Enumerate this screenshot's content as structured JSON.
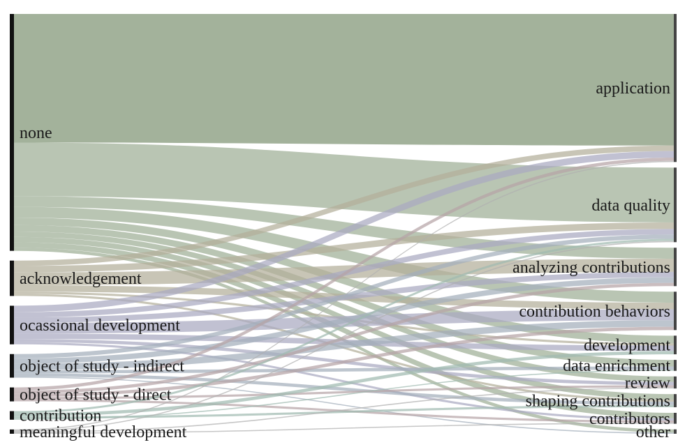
{
  "chart_data": {
    "type": "sankey",
    "title": "",
    "sources": [
      "none",
      "acknowledgement",
      "ocassional development",
      "object of study - indirect",
      "object of study - direct",
      "contribution",
      "meaningful development"
    ],
    "targets": [
      "application",
      "data quality",
      "analyzing contributions",
      "contribution behaviors",
      "development",
      "data enrichment",
      "review",
      "shaping contributions",
      "contributors",
      "other"
    ],
    "source_colors": [
      "#9eae96",
      "#b3ae9a",
      "#a9a9c0",
      "#a3aebb",
      "#b6a3a6",
      "#9fbab0",
      "#b0b0b0"
    ],
    "flows": [
      {
        "source": "none",
        "target": "application",
        "value": 12
      },
      {
        "source": "none",
        "target": "data quality",
        "value": 5
      },
      {
        "source": "none",
        "target": "analyzing contributions",
        "value": 1
      },
      {
        "source": "none",
        "target": "contribution behaviors",
        "value": 1
      },
      {
        "source": "none",
        "target": "development",
        "value": 0.7
      },
      {
        "source": "none",
        "target": "data enrichment",
        "value": 0.6
      },
      {
        "source": "none",
        "target": "review",
        "value": 0.5
      },
      {
        "source": "none",
        "target": "shaping contributions",
        "value": 0.5
      },
      {
        "source": "none",
        "target": "contributors",
        "value": 0.5
      },
      {
        "source": "none",
        "target": "other",
        "value": 0.3
      },
      {
        "source": "acknowledgement",
        "target": "application",
        "value": 0.5
      },
      {
        "source": "acknowledgement",
        "target": "data quality",
        "value": 0.6
      },
      {
        "source": "acknowledgement",
        "target": "analyzing contributions",
        "value": 1.2
      },
      {
        "source": "acknowledgement",
        "target": "contribution behaviors",
        "value": 0.6
      },
      {
        "source": "acknowledgement",
        "target": "development",
        "value": 0.2
      },
      {
        "source": "acknowledgement",
        "target": "shaping contributions",
        "value": 0.2
      },
      {
        "source": "ocassional development",
        "target": "application",
        "value": 0.6
      },
      {
        "source": "ocassional development",
        "target": "data quality",
        "value": 0.5
      },
      {
        "source": "ocassional development",
        "target": "analyzing contributions",
        "value": 0.5
      },
      {
        "source": "ocassional development",
        "target": "contribution behaviors",
        "value": 1.0
      },
      {
        "source": "ocassional development",
        "target": "development",
        "value": 0.5
      },
      {
        "source": "ocassional development",
        "target": "review",
        "value": 0.3
      },
      {
        "source": "ocassional development",
        "target": "contributors",
        "value": 0.2
      },
      {
        "source": "object of study - indirect",
        "target": "data quality",
        "value": 0.4
      },
      {
        "source": "object of study - indirect",
        "target": "analyzing contributions",
        "value": 0.5
      },
      {
        "source": "object of study - indirect",
        "target": "contribution behaviors",
        "value": 0.6
      },
      {
        "source": "object of study - indirect",
        "target": "data enrichment",
        "value": 0.3
      },
      {
        "source": "object of study - indirect",
        "target": "shaping contributions",
        "value": 0.3
      },
      {
        "source": "object of study - indirect",
        "target": "other",
        "value": 0.1
      },
      {
        "source": "object of study - direct",
        "target": "application",
        "value": 0.3
      },
      {
        "source": "object of study - direct",
        "target": "analyzing contributions",
        "value": 0.3
      },
      {
        "source": "object of study - direct",
        "target": "contribution behaviors",
        "value": 0.3
      },
      {
        "source": "object of study - direct",
        "target": "review",
        "value": 0.2
      },
      {
        "source": "object of study - direct",
        "target": "contributors",
        "value": 0.2
      },
      {
        "source": "contribution",
        "target": "data quality",
        "value": 0.2
      },
      {
        "source": "contribution",
        "target": "development",
        "value": 0.3
      },
      {
        "source": "contribution",
        "target": "shaping contributions",
        "value": 0.2
      },
      {
        "source": "contribution",
        "target": "data enrichment",
        "value": 0.1
      },
      {
        "source": "meaningful development",
        "target": "application",
        "value": 0.1
      },
      {
        "source": "meaningful development",
        "target": "data quality",
        "value": 0.1
      },
      {
        "source": "meaningful development",
        "target": "review",
        "value": 0.1
      },
      {
        "source": "meaningful development",
        "target": "contributors",
        "value": 0.1
      }
    ]
  }
}
